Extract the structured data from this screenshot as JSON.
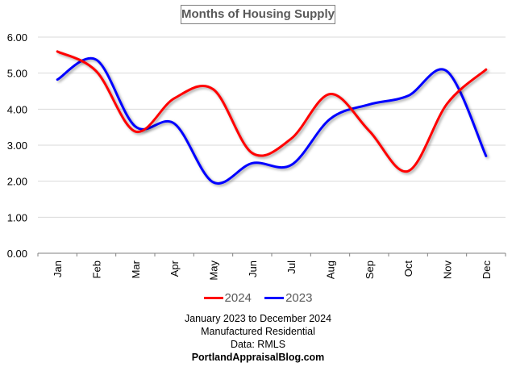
{
  "chart_data": {
    "type": "line",
    "title": "Months of Housing Supply",
    "xlabel": "",
    "ylabel": "",
    "categories": [
      "Jan",
      "Feb",
      "Mar",
      "Apr",
      "May",
      "Jun",
      "Jul",
      "Aug",
      "Sep",
      "Oct",
      "Nov",
      "Dec"
    ],
    "ylim": [
      0,
      6
    ],
    "yticks": [
      "0.00",
      "1.00",
      "2.00",
      "3.00",
      "4.00",
      "5.00",
      "6.00"
    ],
    "grid": true,
    "smooth": true,
    "legend_position": "bottom",
    "series": [
      {
        "name": "2024",
        "color": "#ff0000",
        "values": [
          5.6,
          5.05,
          3.38,
          4.3,
          4.55,
          2.78,
          3.18,
          4.42,
          3.4,
          2.28,
          4.15,
          5.1
        ]
      },
      {
        "name": "2023",
        "color": "#0000ff",
        "values": [
          4.82,
          5.37,
          3.52,
          3.6,
          1.97,
          2.5,
          2.45,
          3.73,
          4.13,
          4.37,
          5.05,
          2.7
        ]
      }
    ],
    "annotations": [
      "January 2023 to December 2024",
      "Manufactured Residential",
      "Data: RMLS",
      "PortlandAppraisalBlog.com"
    ]
  }
}
